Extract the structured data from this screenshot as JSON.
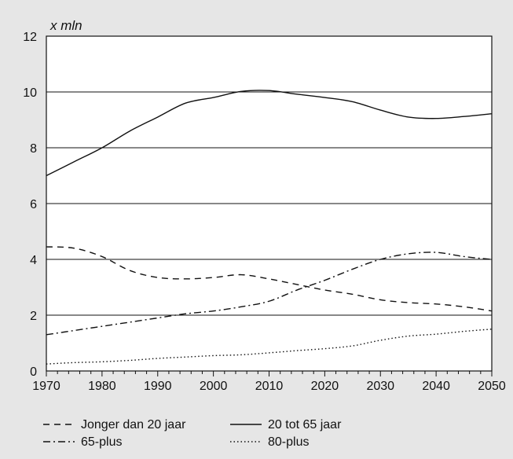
{
  "chart_data": {
    "type": "line",
    "title": "",
    "xlabel": "",
    "ylabel": "x mln",
    "xlim": [
      1970,
      2050
    ],
    "ylim": [
      0,
      12
    ],
    "xticks": [
      1970,
      1980,
      1990,
      2000,
      2010,
      2020,
      2030,
      2040,
      2050
    ],
    "yticks": [
      0,
      2,
      4,
      6,
      8,
      10,
      12
    ],
    "grid": "horizontal",
    "legend_position": "bottom",
    "x": [
      1970,
      1975,
      1980,
      1985,
      1990,
      1995,
      2000,
      2005,
      2010,
      2015,
      2020,
      2025,
      2030,
      2035,
      2040,
      2045,
      2050
    ],
    "series": [
      {
        "name": "Jonger dan 20 jaar",
        "dash": "dashed",
        "values": [
          4.45,
          4.4,
          4.1,
          3.6,
          3.35,
          3.3,
          3.35,
          3.45,
          3.3,
          3.1,
          2.9,
          2.75,
          2.55,
          2.45,
          2.4,
          2.3,
          2.15
        ]
      },
      {
        "name": "20 tot 65 jaar",
        "dash": "solid",
        "values": [
          7.0,
          7.5,
          8.0,
          8.6,
          9.1,
          9.6,
          9.8,
          10.02,
          10.05,
          9.92,
          9.8,
          9.65,
          9.35,
          9.1,
          9.05,
          9.12,
          9.22
        ]
      },
      {
        "name": "65-plus",
        "dash": "dashdot",
        "values": [
          1.3,
          1.45,
          1.6,
          1.75,
          1.9,
          2.05,
          2.15,
          2.3,
          2.5,
          2.9,
          3.25,
          3.65,
          4.0,
          4.2,
          4.25,
          4.1,
          4.0
        ]
      },
      {
        "name": "80-plus",
        "dash": "dotted",
        "values": [
          0.25,
          0.3,
          0.33,
          0.38,
          0.45,
          0.5,
          0.55,
          0.58,
          0.65,
          0.73,
          0.8,
          0.9,
          1.1,
          1.25,
          1.32,
          1.42,
          1.5
        ]
      }
    ]
  }
}
